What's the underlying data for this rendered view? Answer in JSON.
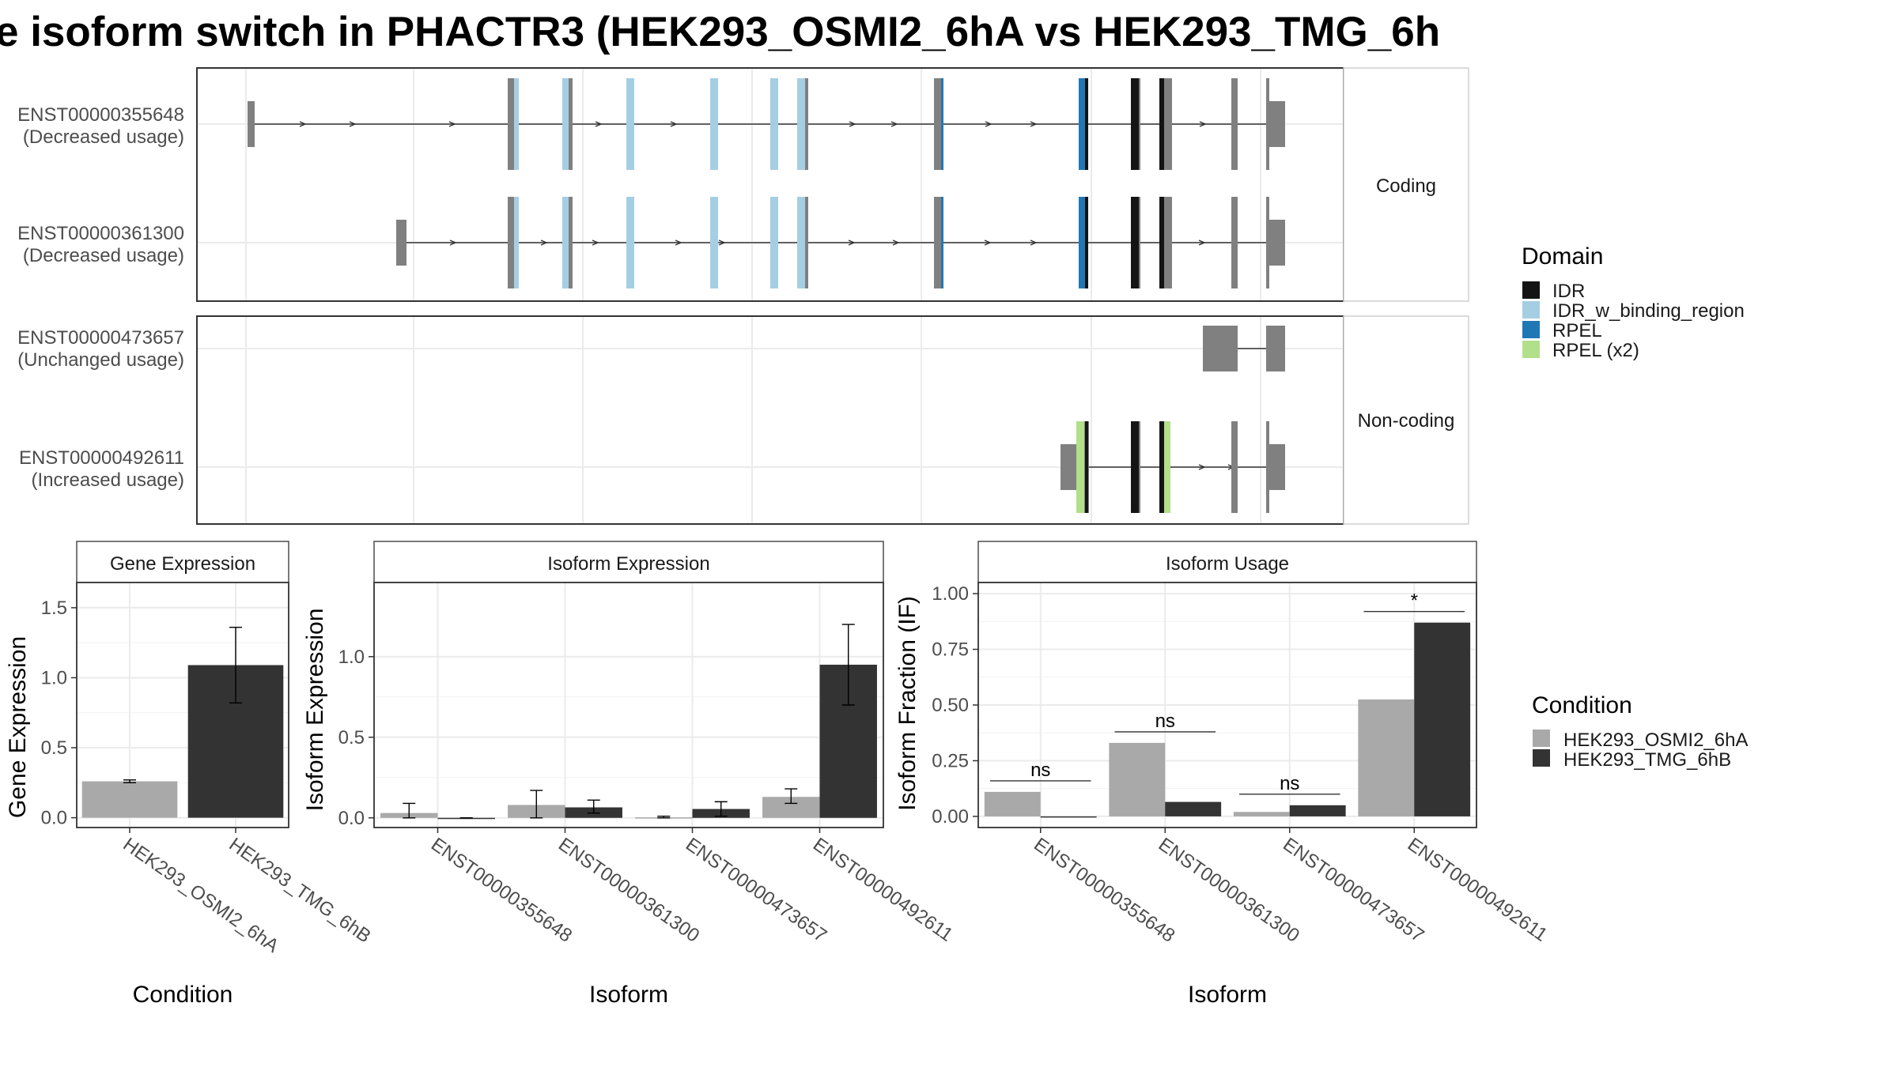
{
  "title": "e isoform switch in PHACTR3 (HEK293_OSMI2_6hA vs HEK293_TMG_6h",
  "colors": {
    "exon": "#808080",
    "IDR": "#141414",
    "IDR_w_binding_region": "#A6CEE3",
    "RPEL": "#1F78B4",
    "RPEL_x2": "#B2DF8A",
    "cond_A": "#A9A9A9",
    "cond_B": "#333333"
  },
  "transcript_panel": {
    "facets": [
      {
        "label": "Coding",
        "transcripts": [
          {
            "id": "ENST00000355648",
            "usage": "(Decreased usage)"
          },
          {
            "id": "ENST00000361300",
            "usage": "(Decreased usage)"
          }
        ]
      },
      {
        "label": "Non-coding",
        "transcripts": [
          {
            "id": "ENST00000473657",
            "usage": "(Unchanged usage)"
          },
          {
            "id": "ENST00000492611",
            "usage": "(Increased usage)"
          }
        ]
      }
    ],
    "legend": {
      "title": "Domain",
      "items": [
        {
          "label": "IDR",
          "color_key": "IDR"
        },
        {
          "label": "IDR_w_binding_region",
          "color_key": "IDR_w_binding_region"
        },
        {
          "label": "RPEL",
          "color_key": "RPEL"
        },
        {
          "label": "RPEL (x2)",
          "color_key": "RPEL_x2"
        }
      ]
    }
  },
  "chart_data": [
    {
      "type": "bar",
      "title": "Gene Expression",
      "xlabel": "Condition",
      "ylabel": "Gene Expression",
      "categories": [
        "HEK293_OSMI2_6hA",
        "HEK293_TMG_6hB"
      ],
      "values": [
        0.26,
        1.09
      ],
      "err_low": [
        0.25,
        0.82
      ],
      "err_high": [
        0.27,
        1.36
      ],
      "yticks": [
        "0.0",
        "0.5",
        "1.0",
        "1.5"
      ],
      "ylim": [
        -0.07,
        1.68
      ],
      "grid": true
    },
    {
      "type": "bar",
      "title": "Isoform Expression",
      "xlabel": "Isoform",
      "ylabel": "Isoform Expression",
      "categories": [
        "ENST00000355648",
        "ENST00000361300",
        "ENST00000473657",
        "ENST00000492611"
      ],
      "series": [
        {
          "name": "HEK293_OSMI2_6hA",
          "values": [
            0.03,
            0.08,
            0.003,
            0.13
          ],
          "err_low": [
            0.0,
            0.0,
            0.0,
            0.09
          ],
          "err_high": [
            0.09,
            0.17,
            0.01,
            0.18
          ]
        },
        {
          "name": "HEK293_TMG_6hB",
          "values": [
            0.0,
            0.065,
            0.055,
            0.95
          ],
          "err_low": [
            0.0,
            0.03,
            0.01,
            0.7
          ],
          "err_high": [
            0.0,
            0.11,
            0.1,
            1.2
          ]
        }
      ],
      "yticks": [
        "0.0",
        "0.5",
        "1.0"
      ],
      "ylim": [
        -0.06,
        1.46
      ],
      "grid": true
    },
    {
      "type": "bar",
      "title": "Isoform Usage",
      "xlabel": "Isoform",
      "ylabel": "Isoform Fraction (IF)",
      "categories": [
        "ENST00000355648",
        "ENST00000361300",
        "ENST00000473657",
        "ENST00000492611"
      ],
      "series": [
        {
          "name": "HEK293_OSMI2_6hA",
          "values": [
            0.11,
            0.33,
            0.02,
            0.525
          ]
        },
        {
          "name": "HEK293_TMG_6hB",
          "values": [
            0.0,
            0.065,
            0.05,
            0.87
          ]
        }
      ],
      "significance": [
        "ns",
        "ns",
        "ns",
        "*"
      ],
      "yticks": [
        "0.00",
        "0.25",
        "0.50",
        "0.75",
        "1.00"
      ],
      "ylim": [
        -0.05,
        1.05
      ],
      "grid": true
    }
  ],
  "condition_legend": {
    "title": "Condition",
    "items": [
      {
        "label": "HEK293_OSMI2_6hA",
        "color_key": "cond_A"
      },
      {
        "label": "HEK293_TMG_6hB",
        "color_key": "cond_B"
      }
    ]
  }
}
